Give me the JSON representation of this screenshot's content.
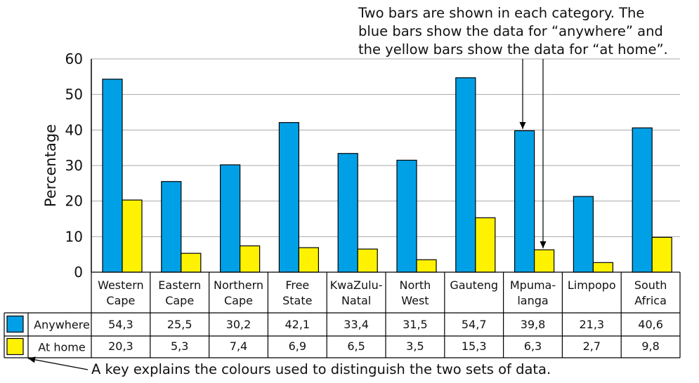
{
  "annotations": {
    "top_note": [
      "Two bars are shown in each category. The",
      "blue bars show the data for “anywhere” and",
      "the yellow bars show the data for “at home”."
    ],
    "bottom_note": "A key explains the colours used to distinguish the two sets of data."
  },
  "chart_data": {
    "type": "bar",
    "ylabel": "Percentage",
    "ylim": [
      0,
      60
    ],
    "yticks": [
      0,
      10,
      20,
      30,
      40,
      50,
      60
    ],
    "grid": true,
    "categories": [
      [
        "Western",
        "Cape"
      ],
      [
        "Eastern",
        "Cape"
      ],
      [
        "Northern",
        "Cape"
      ],
      [
        "Free",
        "State"
      ],
      [
        "KwaZulu-",
        "Natal"
      ],
      [
        "North",
        "West"
      ],
      [
        "Gauteng"
      ],
      [
        "Mpuma-",
        "langa"
      ],
      [
        "Limpopo"
      ],
      [
        "South",
        "Africa"
      ]
    ],
    "series": [
      {
        "name": "Anywhere",
        "color": "#00A0E6",
        "values": [
          "54,3",
          "25,5",
          "30,2",
          "42,1",
          "33,4",
          "31,5",
          "54,7",
          "39,8",
          "21,3",
          "40,6"
        ]
      },
      {
        "name": "At home",
        "color": "#FFF200",
        "values": [
          "20,3",
          "5,3",
          "7,4",
          "6,9",
          "6,5",
          "3,5",
          "15,3",
          "6,3",
          "2,7",
          "9,8"
        ]
      }
    ],
    "legend": "table-rows-left"
  }
}
